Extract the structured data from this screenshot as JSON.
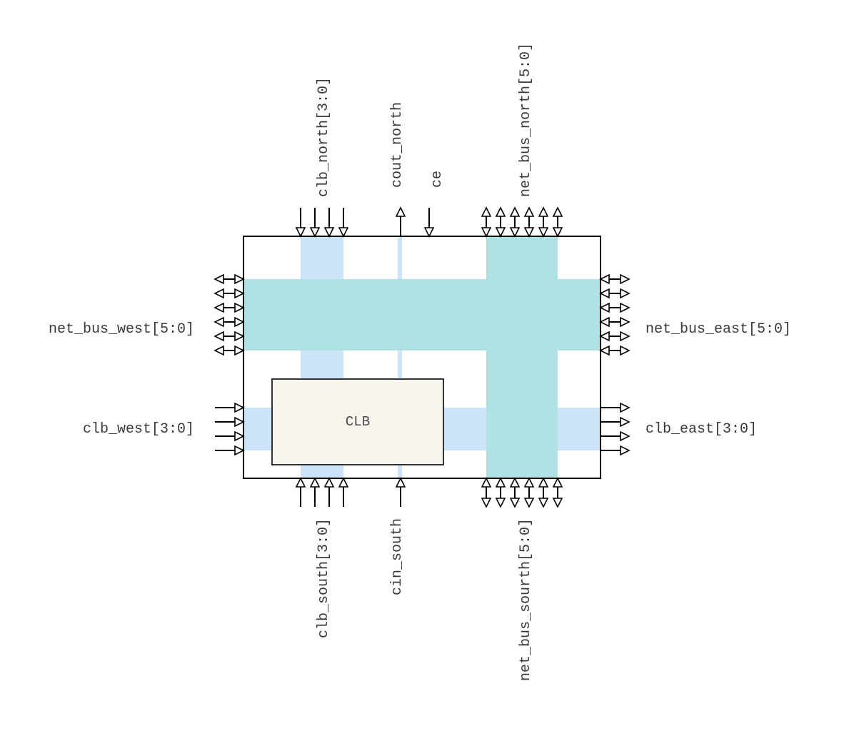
{
  "colors": {
    "clb_channel": "#cce4f9",
    "net_bus": "#b0e2e4",
    "clb_fill": "#f7f5ee",
    "outline": "#000000",
    "text": "#3a3a3a"
  },
  "block": {
    "clb_label": "CLB"
  },
  "ports": {
    "clb_north": {
      "label": "clb_north[3:0]",
      "direction": "in",
      "width": 4
    },
    "cout_north": {
      "label": "cout_north",
      "direction": "out",
      "width": 1
    },
    "ce": {
      "label": "ce",
      "direction": "in",
      "width": 1
    },
    "net_bus_north": {
      "label": "net_bus_north[5:0]",
      "direction": "inout",
      "width": 6
    },
    "net_bus_west": {
      "label": "net_bus_west[5:0]",
      "direction": "inout",
      "width": 6
    },
    "net_bus_east": {
      "label": "net_bus_east[5:0]",
      "direction": "inout",
      "width": 6
    },
    "clb_west": {
      "label": "clb_west[3:0]",
      "direction": "in",
      "width": 4
    },
    "clb_east": {
      "label": "clb_east[3:0]",
      "direction": "out",
      "width": 4
    },
    "clb_south": {
      "label": "clb_south[3:0]",
      "direction": "in",
      "width": 4
    },
    "cin_south": {
      "label": "cin_south",
      "direction": "in",
      "width": 1
    },
    "net_bus_south": {
      "label": "net_bus_sourth[5:0]",
      "direction": "inout",
      "width": 6
    }
  }
}
